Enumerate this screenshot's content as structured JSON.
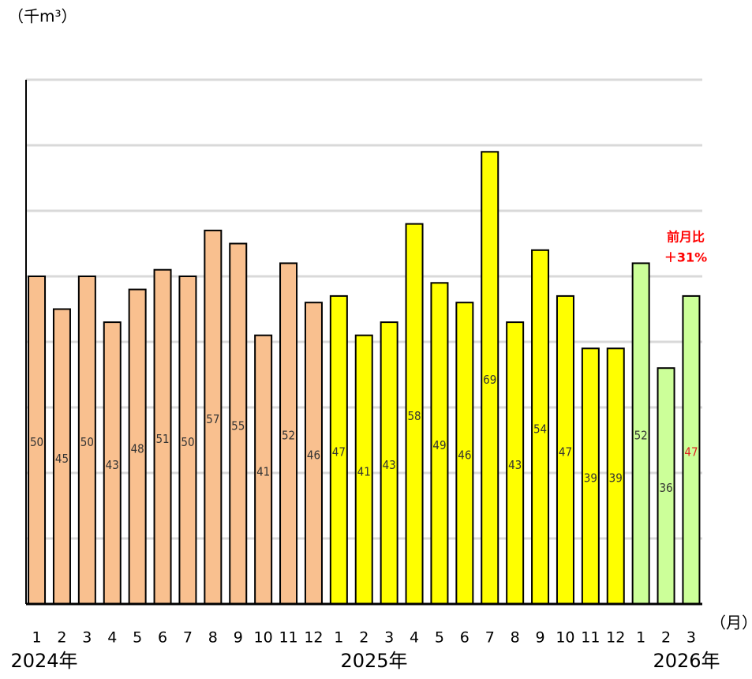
{
  "chart_data": {
    "type": "bar",
    "y_unit_label": "（千m³）",
    "x_unit_label": "（月）",
    "categories": [
      "1",
      "2",
      "3",
      "4",
      "5",
      "6",
      "7",
      "8",
      "9",
      "10",
      "11",
      "12",
      "1",
      "2",
      "3",
      "4",
      "5",
      "6",
      "7",
      "8",
      "9",
      "10",
      "11",
      "12",
      "1",
      "2",
      "3"
    ],
    "values": [
      50,
      45,
      50,
      43,
      48,
      51,
      50,
      57,
      55,
      41,
      52,
      46,
      47,
      41,
      43,
      58,
      49,
      46,
      69,
      43,
      54,
      47,
      39,
      39,
      52,
      36,
      47
    ],
    "colors": [
      "#f9c08f",
      "#f9c08f",
      "#f9c08f",
      "#f9c08f",
      "#f9c08f",
      "#f9c08f",
      "#f9c08f",
      "#f9c08f",
      "#f9c08f",
      "#f9c08f",
      "#f9c08f",
      "#f9c08f",
      "#ffff00",
      "#ffff00",
      "#ffff00",
      "#ffff00",
      "#ffff00",
      "#ffff00",
      "#ffff00",
      "#ffff00",
      "#ffff00",
      "#ffff00",
      "#ffff00",
      "#ffff00",
      "#ccff99",
      "#ccff99",
      "#ccff99"
    ],
    "value_label_colors": [
      "#333",
      "#333",
      "#333",
      "#333",
      "#333",
      "#333",
      "#333",
      "#333",
      "#333",
      "#333",
      "#333",
      "#333",
      "#333",
      "#333",
      "#333",
      "#333",
      "#333",
      "#333",
      "#333",
      "#333",
      "#333",
      "#333",
      "#333",
      "#333",
      "#333",
      "#333",
      "#e02020"
    ],
    "year_labels": [
      "2024年",
      "2025年",
      "2026年"
    ],
    "annotation": [
      "前月比",
      "＋31%"
    ],
    "annotation_color": "#ff0000",
    "ylim": [
      0,
      80
    ],
    "yticks": [
      0,
      10,
      20,
      30,
      40,
      50,
      60,
      70,
      80
    ],
    "grid": true
  }
}
